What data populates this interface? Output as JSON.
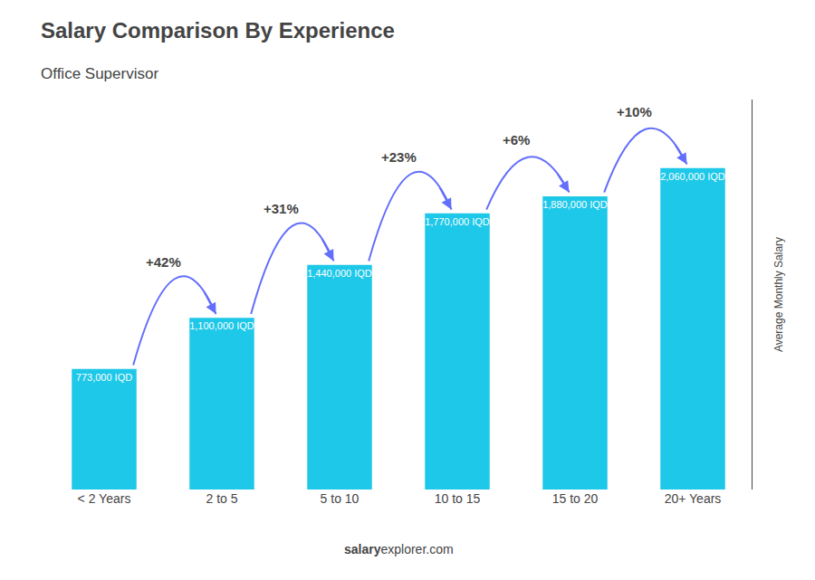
{
  "chart_data": {
    "type": "bar",
    "title": "Salary Comparison By Experience",
    "subtitle": "Office Supervisor",
    "ylabel": "Average Monthly Salary",
    "footer": [
      "salary",
      "explorer.com"
    ],
    "categories": [
      "< 2 Years",
      "2 to 5",
      "5 to 10",
      "10 to 15",
      "15 to 20",
      "20+ Years"
    ],
    "values": [
      773000,
      1100000,
      1440000,
      1770000,
      1880000,
      2060000
    ],
    "value_labels": [
      "773,000 IQD",
      "1,100,000 IQD",
      "1,440,000 IQD",
      "1,770,000 IQD",
      "1,880,000 IQD",
      "2,060,000 IQD"
    ],
    "data_labels": true,
    "pct_labels": [
      "+42%",
      "+31%",
      "+23%",
      "+6%",
      "+10%"
    ],
    "color": "#1ec8e8",
    "ylim": [
      0,
      2500000
    ],
    "grid": false,
    "tick_labels": "x"
  }
}
